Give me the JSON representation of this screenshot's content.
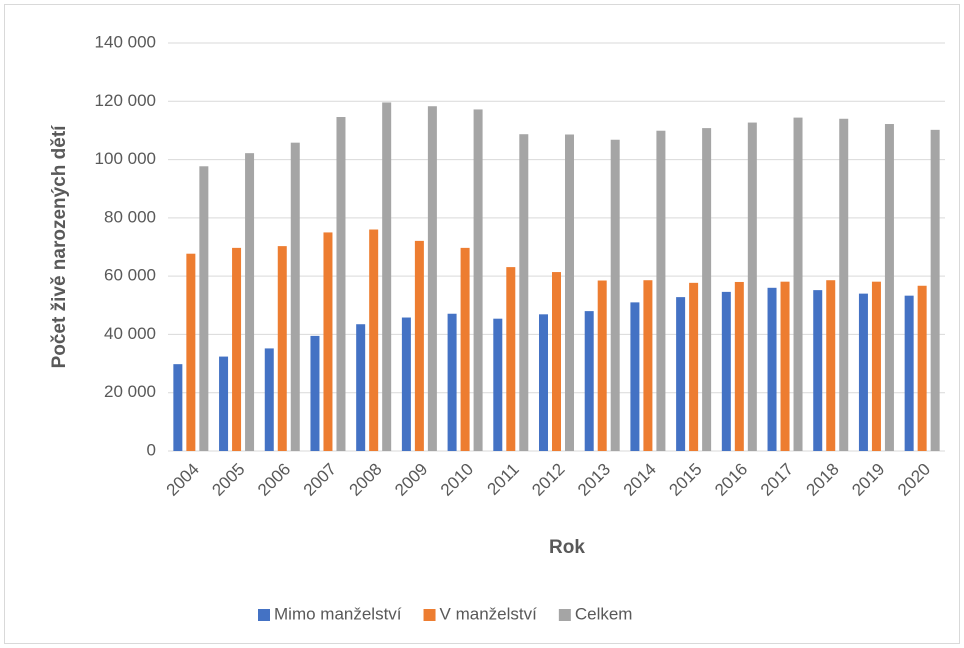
{
  "chart_data": {
    "type": "bar",
    "x_label": "Rok",
    "y_label": "Počet živě narozených dětí",
    "categories": [
      "2004",
      "2005",
      "2006",
      "2007",
      "2008",
      "2009",
      "2010",
      "2011",
      "2012",
      "2013",
      "2014",
      "2015",
      "2016",
      "2017",
      "2018",
      "2019",
      "2020"
    ],
    "series": [
      {
        "name": "Mimo manželství",
        "color": "#4472c4",
        "values": [
          29800,
          32400,
          35200,
          39500,
          43500,
          45800,
          47100,
          45400,
          46900,
          48000,
          51000,
          52800,
          54600,
          56000,
          55200,
          54000,
          53300
        ]
      },
      {
        "name": "V manželství",
        "color": "#ed7d31",
        "values": [
          67700,
          69700,
          70300,
          75000,
          76000,
          72100,
          69700,
          63100,
          61400,
          58500,
          58600,
          57700,
          58000,
          58100,
          58600,
          58100,
          56700
        ]
      },
      {
        "name": "Celkem",
        "color": "#a5a5a5",
        "values": [
          97700,
          102200,
          105800,
          114600,
          119600,
          118300,
          117200,
          108700,
          108600,
          106800,
          109900,
          110800,
          112700,
          114400,
          114000,
          112200,
          110200
        ]
      }
    ],
    "ylim": [
      0,
      140000
    ],
    "yticks": [
      0,
      {
        "value": 20000,
        "label": "20 000"
      },
      {
        "value": 40000,
        "label": "40 000"
      },
      {
        "value": 60000,
        "label": "60 000"
      },
      {
        "value": 80000,
        "label": "80 000"
      },
      {
        "value": 100000,
        "label": "100 000"
      },
      {
        "value": 120000,
        "label": "120 000"
      },
      {
        "value": 140000,
        "label": "140 000"
      }
    ],
    "grid": true,
    "legend": "bottom"
  }
}
